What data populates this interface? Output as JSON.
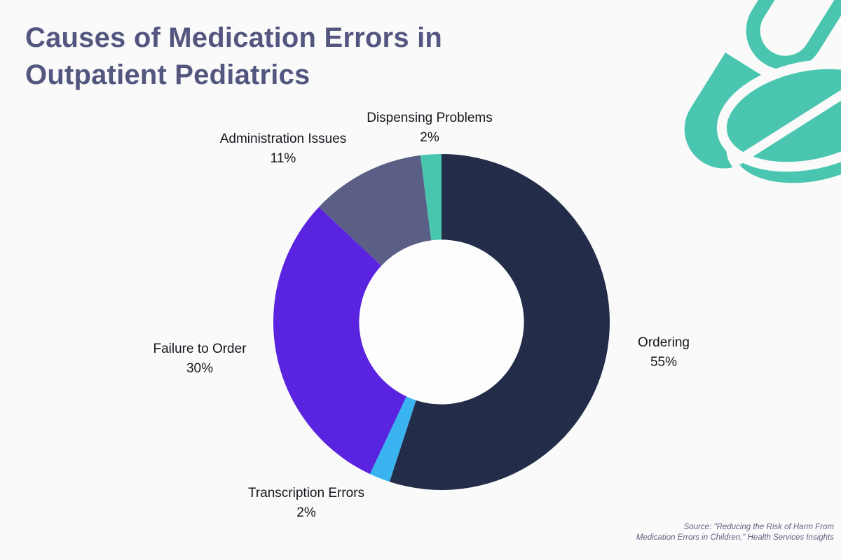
{
  "page": {
    "background": "#fafafa",
    "title": {
      "line1": "Causes of Medication Errors in",
      "line2": "Outpatient Pediatrics",
      "color": "#53577f"
    },
    "source": {
      "line1": "Source:  \"Reducing the Risk of Harm From",
      "line2": "Medication Errors in Children,\" Health Services Insights"
    }
  },
  "icons": {
    "pill": {
      "name": "capsule-and-tablet-icon",
      "color": "#4ac6b0"
    }
  },
  "chart_data": {
    "type": "pie",
    "subtype": "donut",
    "title": "Causes of Medication Errors in Outpatient Pediatrics",
    "unit": "%",
    "start_angle_deg": 0,
    "direction": "clockwise",
    "hole_ratio": 0.49,
    "legend": "none",
    "labels_position": "outside",
    "hole_color": "#fdfdfe",
    "slices": [
      {
        "label": "Ordering",
        "value": 55,
        "pct_label": "55%",
        "color": "#232c48"
      },
      {
        "label": "Transcription Errors",
        "value": 2,
        "pct_label": "2%",
        "color": "#39b4f0"
      },
      {
        "label": "Failure to Order",
        "value": 30,
        "pct_label": "30%",
        "color": "#5a23e0"
      },
      {
        "label": "Administration Issues",
        "value": 11,
        "pct_label": "11%",
        "color": "#5b5f85"
      },
      {
        "label": "Dispensing Problems",
        "value": 2,
        "pct_label": "2%",
        "color": "#49c6b0"
      }
    ]
  }
}
